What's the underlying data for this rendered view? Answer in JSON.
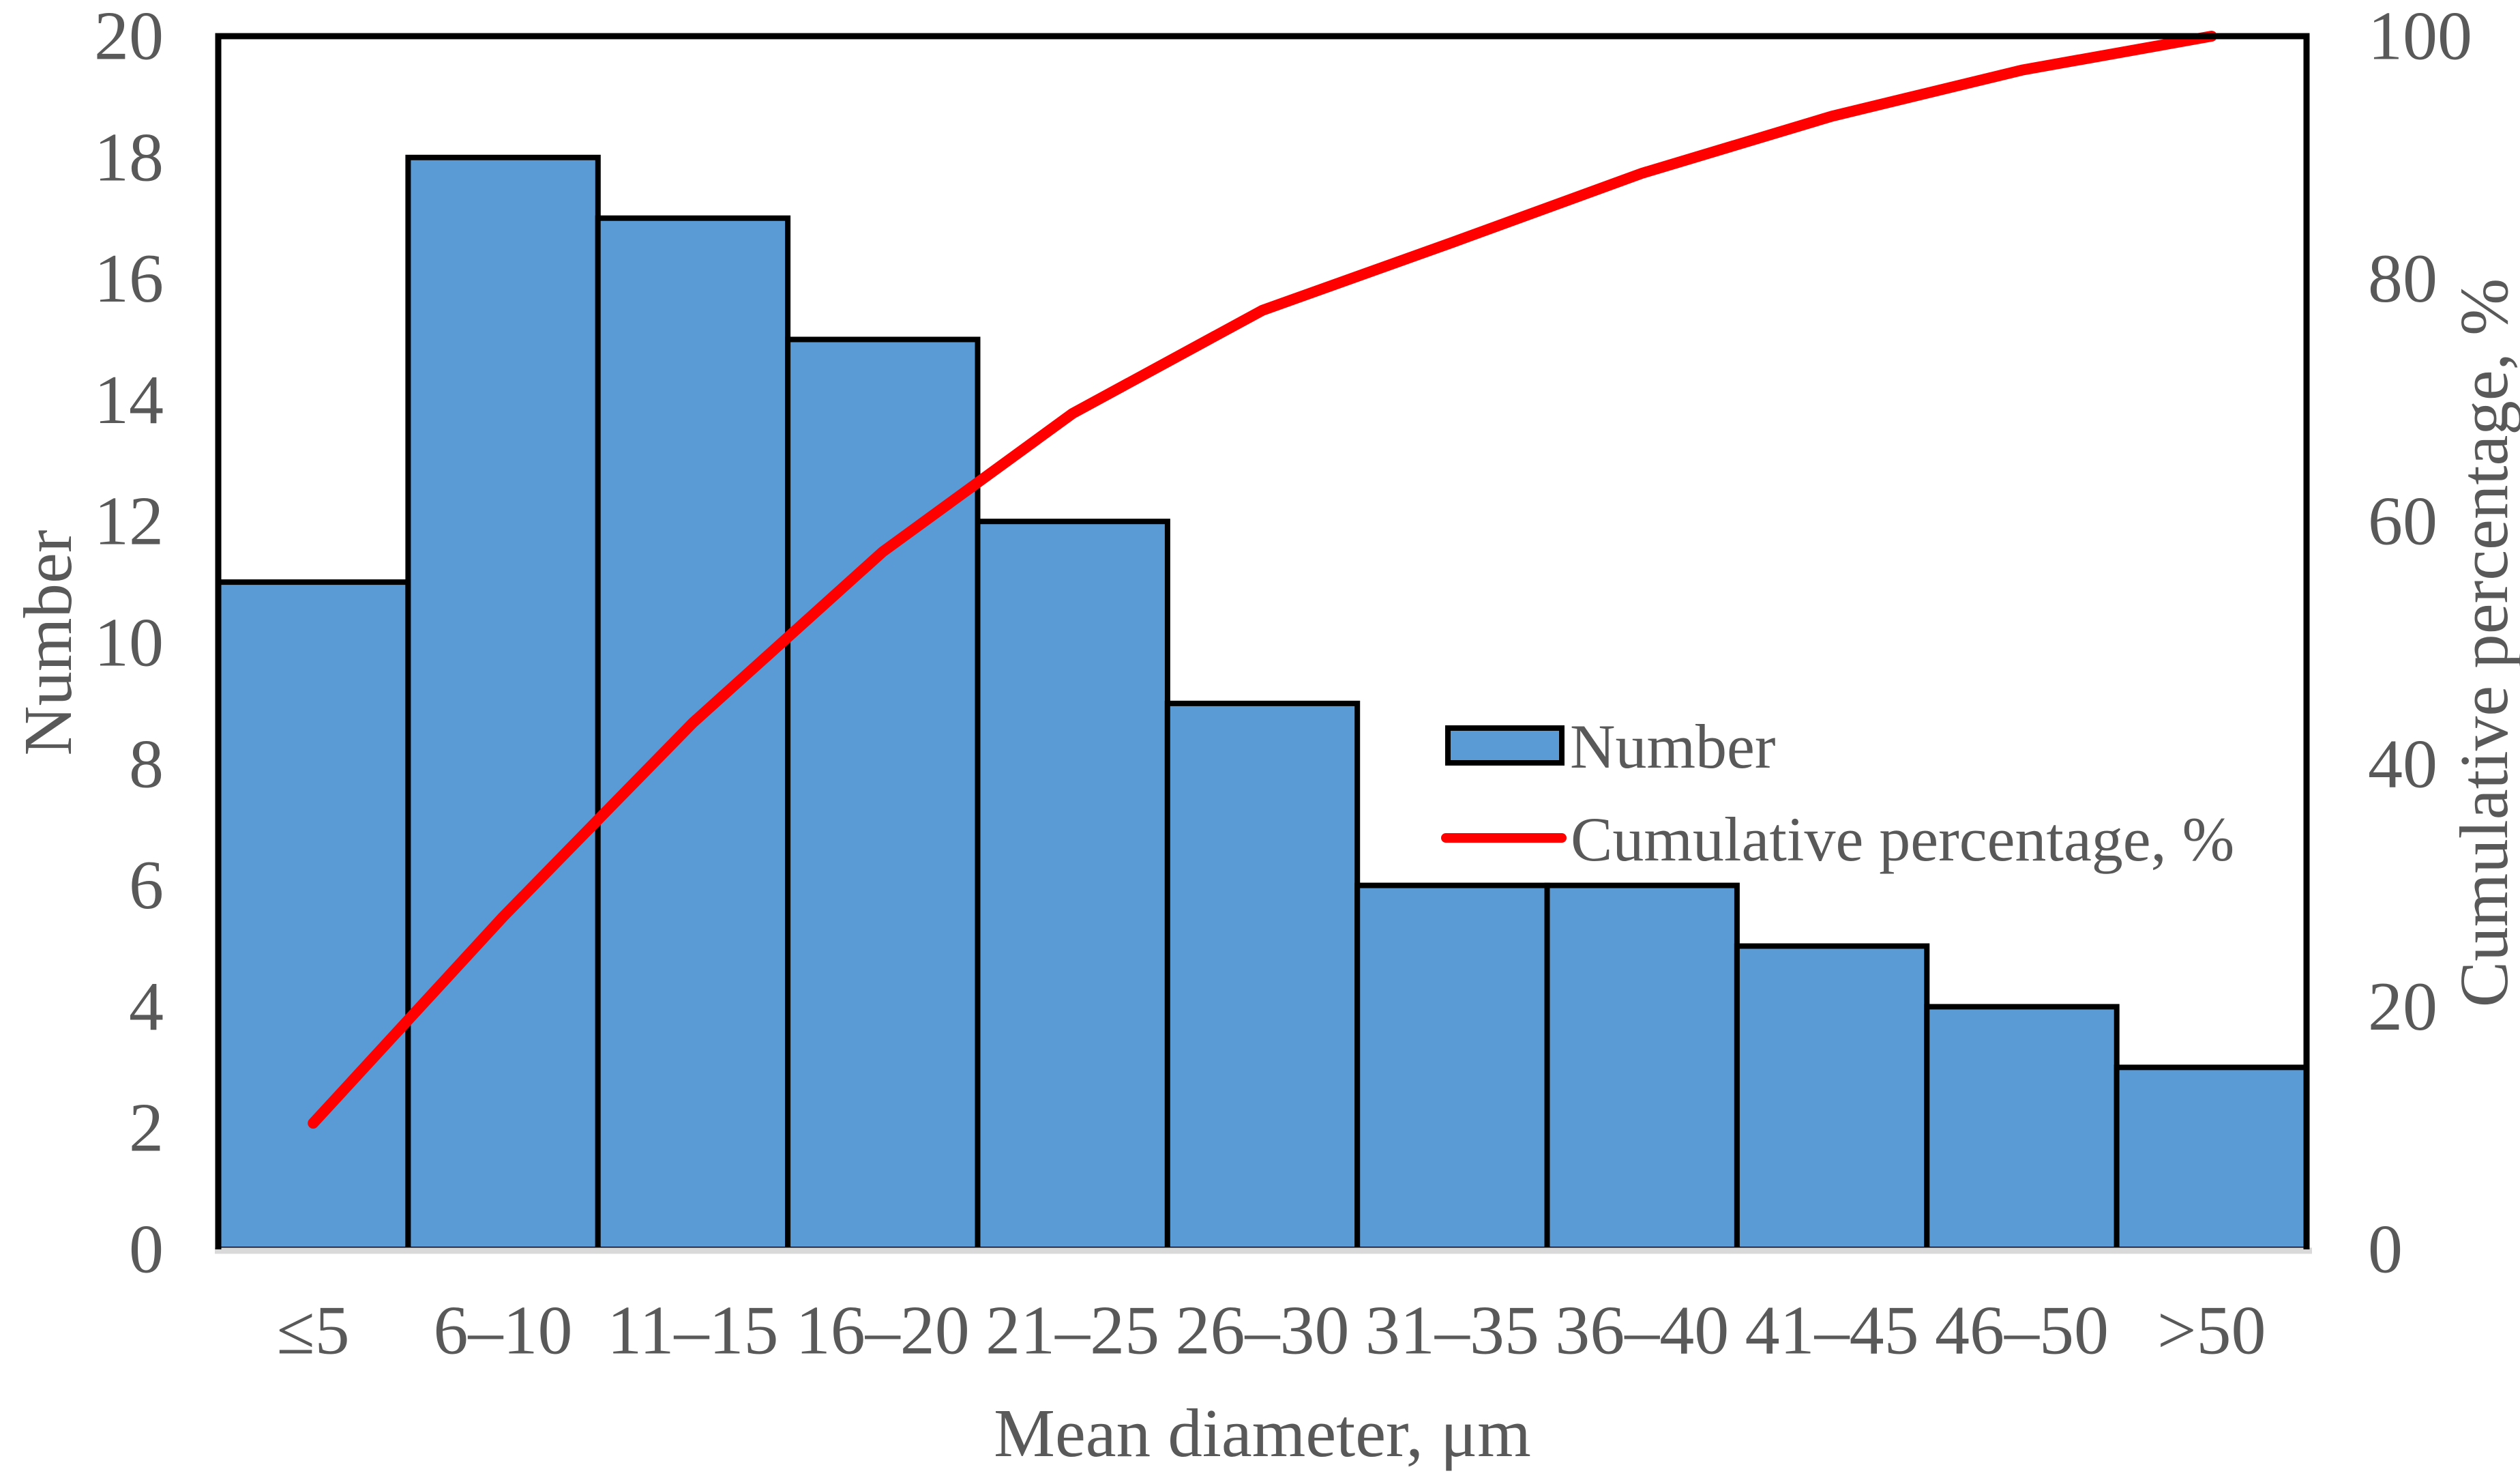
{
  "chart_data": {
    "type": "bar",
    "subtype": "pareto-histogram-with-cumulative-line",
    "title": "",
    "xlabel": "Mean diameter, μm",
    "ylabel_left": "Number",
    "ylabel_right": "Cumulative percentage, %",
    "categories": [
      "≤5",
      "6–10",
      "11–15",
      "16–20",
      "21–25",
      "26–30",
      "31–35",
      "36–40",
      "41–45",
      "46–50",
      ">50"
    ],
    "series": [
      {
        "name": "Number",
        "type": "bar",
        "axis": "left",
        "values": [
          11,
          18,
          17,
          15,
          12,
          9,
          6,
          6,
          5,
          4,
          3
        ]
      },
      {
        "name": "Cumulative percentage, %",
        "type": "line",
        "axis": "right",
        "values": [
          10.4,
          27.4,
          43.4,
          57.5,
          68.9,
          77.4,
          83.0,
          88.7,
          93.4,
          97.2,
          100.0
        ]
      }
    ],
    "ylim_left": [
      0,
      20
    ],
    "ylim_right": [
      0,
      100
    ],
    "y_ticks_left": [
      0,
      2,
      4,
      6,
      8,
      10,
      12,
      14,
      16,
      18,
      20
    ],
    "y_ticks_right": [
      0,
      20,
      40,
      60,
      80,
      100
    ],
    "grid": false,
    "legend_position": "inside-middle-right"
  },
  "colors": {
    "bar_fill": "#5B9BD5",
    "bar_border": "#000000",
    "line": "#FF0000",
    "frame": "#000000",
    "baseline": "#D9D9D9",
    "text": "#595959",
    "background": "#FFFFFF"
  }
}
